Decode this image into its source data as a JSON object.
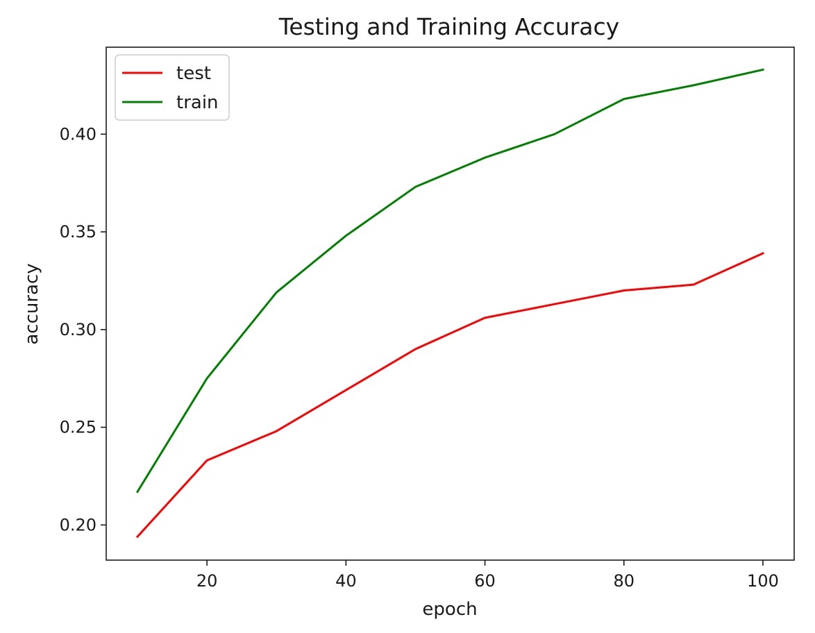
{
  "chart_data": {
    "type": "line",
    "title": "Testing and Training Accuracy",
    "xlabel": "epoch",
    "ylabel": "accuracy",
    "x": [
      10,
      20,
      30,
      40,
      50,
      60,
      70,
      80,
      90,
      100
    ],
    "xlim": [
      5.5,
      104.5
    ],
    "ylim": [
      0.182,
      0.4445
    ],
    "xticks": [
      20,
      40,
      60,
      80,
      100
    ],
    "xtick_labels": [
      "20",
      "40",
      "60",
      "80",
      "100"
    ],
    "yticks": [
      0.2,
      0.25,
      0.3,
      0.35,
      0.4
    ],
    "ytick_labels": [
      "0.20",
      "0.25",
      "0.30",
      "0.35",
      "0.40"
    ],
    "grid": false,
    "legend_position": "top-left",
    "series": [
      {
        "name": "test",
        "color": "#ff0000",
        "values": [
          0.194,
          0.233,
          0.248,
          0.269,
          0.29,
          0.306,
          0.313,
          0.32,
          0.323,
          0.339
        ]
      },
      {
        "name": "train",
        "color": "#008000",
        "values": [
          0.217,
          0.275,
          0.319,
          0.348,
          0.373,
          0.388,
          0.4,
          0.418,
          0.425,
          0.433
        ]
      }
    ]
  }
}
